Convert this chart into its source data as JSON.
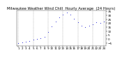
{
  "title": "Milwaukee Weather Wind Chill  Hourly Average  (24 Hours)",
  "hours": [
    1,
    2,
    3,
    4,
    5,
    6,
    7,
    8,
    9,
    10,
    11,
    12,
    13,
    14,
    15,
    16,
    17,
    18,
    19,
    20,
    21,
    22,
    23,
    24
  ],
  "values": [
    -5,
    -4,
    -3,
    -2,
    -1,
    0,
    1,
    3,
    9,
    16,
    22,
    27,
    31,
    33,
    31,
    26,
    21,
    17,
    15,
    17,
    19,
    21,
    20,
    22
  ],
  "dot_color": "#0000cc",
  "bg_color": "#ffffff",
  "grid_color": "#888888",
  "title_color": "#000000",
  "ylim": [
    -8,
    36
  ],
  "yticks": [
    -5,
    0,
    5,
    10,
    15,
    20,
    25,
    30,
    35
  ],
  "ylabel_fontsize": 3.0,
  "title_fontsize": 3.8,
  "xlabel_fontsize": 3.0,
  "dot_size": 1.2,
  "vgrid_positions": [
    1,
    5,
    9,
    13,
    17,
    21,
    24
  ]
}
